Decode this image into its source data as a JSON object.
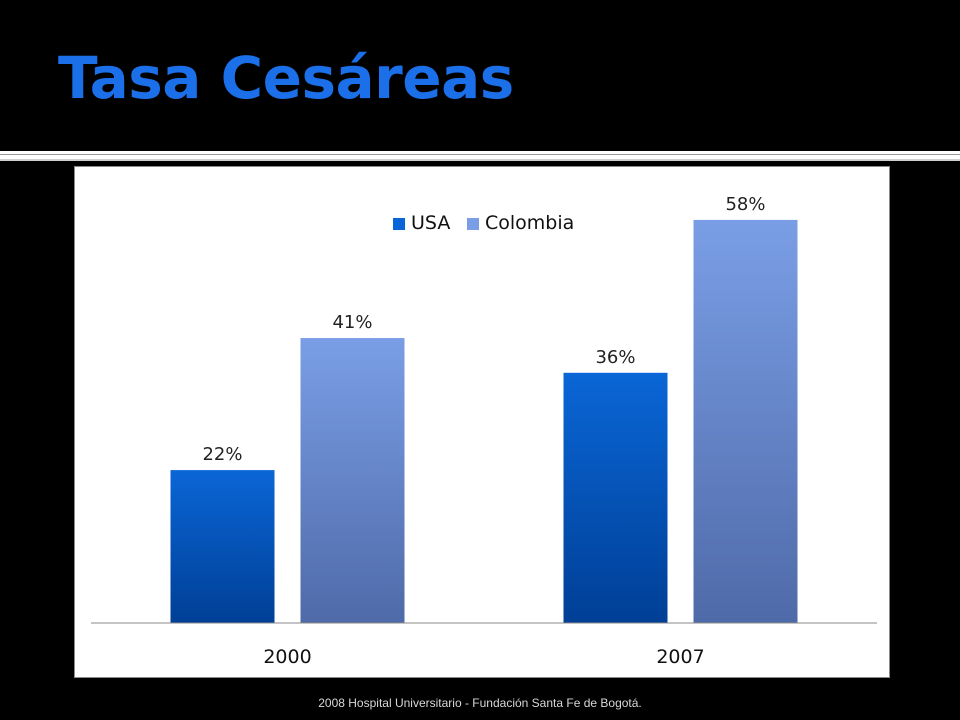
{
  "slide": {
    "title": "Tasa Cesáreas",
    "footer": "2008  Hospital Universitario - Fundación Santa Fe de Bogotá."
  },
  "colors": {
    "background": "#000000",
    "title": "#1b6fe8",
    "usa_top": "#0a66d6",
    "usa_bottom": "#003f96",
    "colombia_top": "#7a9ee6",
    "colombia_bottom": "#4f6aa8"
  },
  "chart_data": {
    "type": "bar",
    "categories": [
      "2000",
      "2007"
    ],
    "series": [
      {
        "name": "USA",
        "values": [
          22,
          36
        ],
        "labels": [
          "22%",
          "36%"
        ]
      },
      {
        "name": "Colombia",
        "values": [
          41,
          58
        ],
        "labels": [
          "41%",
          "58%"
        ]
      }
    ],
    "title": "",
    "xlabel": "",
    "ylabel": "",
    "ylim": [
      0,
      65
    ],
    "grid": false,
    "legend_position": "top"
  }
}
